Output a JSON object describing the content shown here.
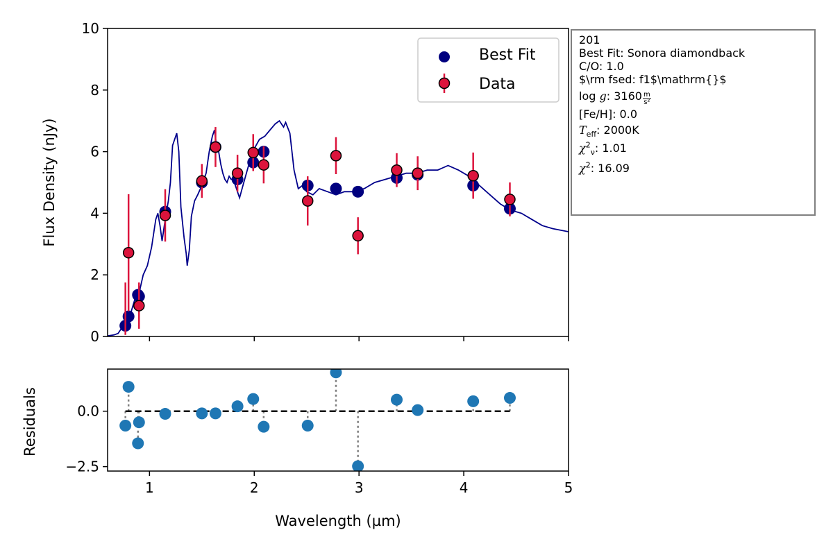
{
  "chart_data": [
    {
      "type": "scatter",
      "panel": "main",
      "ylabel": "Flux Density (nJy)",
      "xlim": [
        0.6,
        5.0
      ],
      "ylim": [
        0,
        10
      ],
      "y_ticks": [
        "0",
        "2",
        "4",
        "6",
        "8",
        "10"
      ],
      "x_ticks_visible_labels": false,
      "legend": {
        "position": "top-right",
        "entries": [
          "Best Fit",
          "Data"
        ]
      },
      "colors": {
        "best_fit": "#00007f",
        "data": "#dc143c",
        "model_line": "#00008b"
      },
      "series": [
        {
          "name": "Best Fit",
          "x": [
            0.77,
            0.8,
            0.89,
            0.9,
            1.15,
            1.5,
            1.63,
            1.84,
            1.99,
            2.09,
            2.51,
            2.78,
            2.99,
            3.36,
            3.56,
            4.09,
            4.44
          ],
          "y": [
            0.35,
            0.65,
            1.35,
            1.3,
            4.05,
            5.0,
            6.15,
            5.1,
            5.65,
            6.0,
            4.9,
            4.8,
            4.7,
            5.15,
            5.25,
            4.9,
            4.15
          ]
        },
        {
          "name": "Data",
          "x": [
            0.8,
            0.9,
            1.15,
            1.5,
            1.63,
            1.84,
            1.99,
            2.09,
            2.51,
            2.78,
            2.99,
            3.36,
            3.56,
            4.09,
            4.44
          ],
          "y": [
            2.72,
            1.0,
            3.93,
            5.05,
            6.15,
            5.3,
            5.97,
            5.57,
            4.4,
            5.87,
            3.27,
            5.4,
            5.3,
            5.22,
            4.45
          ],
          "yerr": [
            1.9,
            0.75,
            0.85,
            0.55,
            0.65,
            0.6,
            0.6,
            0.6,
            0.8,
            0.6,
            0.6,
            0.55,
            0.55,
            0.75,
            0.55
          ]
        },
        {
          "name": "",
          "x": [
            0.77,
            0.77
          ],
          "y": [
            0.05,
            1.75
          ],
          "role": "errorbar-only"
        }
      ],
      "model_spectrum": {
        "x": [
          0.6,
          0.66,
          0.7,
          0.74,
          0.78,
          0.82,
          0.86,
          0.9,
          0.94,
          0.98,
          1.02,
          1.06,
          1.08,
          1.1,
          1.12,
          1.15,
          1.18,
          1.2,
          1.22,
          1.26,
          1.28,
          1.3,
          1.33,
          1.35,
          1.36,
          1.38,
          1.4,
          1.43,
          1.46,
          1.5,
          1.54,
          1.57,
          1.6,
          1.62,
          1.64,
          1.66,
          1.68,
          1.7,
          1.72,
          1.74,
          1.76,
          1.78,
          1.8,
          1.83,
          1.86,
          1.9,
          1.95,
          2.0,
          2.05,
          2.1,
          2.15,
          2.2,
          2.24,
          2.28,
          2.3,
          2.34,
          2.38,
          2.42,
          2.46,
          2.5,
          2.56,
          2.62,
          2.7,
          2.78,
          2.86,
          2.95,
          3.05,
          3.15,
          3.25,
          3.35,
          3.45,
          3.55,
          3.65,
          3.75,
          3.85,
          3.95,
          4.05,
          4.15,
          4.25,
          4.35,
          4.45,
          4.55,
          4.65,
          4.75,
          4.85,
          5.0
        ],
        "y": [
          0.02,
          0.05,
          0.1,
          0.3,
          0.55,
          0.75,
          1.2,
          1.4,
          2.0,
          2.3,
          2.9,
          3.8,
          4.0,
          3.6,
          3.1,
          3.8,
          4.4,
          5.0,
          6.2,
          6.6,
          6.0,
          4.2,
          3.2,
          2.7,
          2.3,
          2.8,
          3.9,
          4.4,
          4.6,
          4.9,
          5.3,
          6.0,
          6.5,
          6.7,
          6.2,
          6.0,
          5.6,
          5.3,
          5.1,
          5.0,
          5.2,
          5.1,
          5.1,
          4.8,
          4.5,
          5.0,
          5.6,
          6.1,
          6.4,
          6.5,
          6.7,
          6.9,
          7.0,
          6.8,
          6.95,
          6.6,
          5.4,
          4.8,
          4.9,
          4.7,
          4.6,
          4.8,
          4.7,
          4.6,
          4.7,
          4.7,
          4.8,
          5.0,
          5.1,
          5.2,
          5.3,
          5.3,
          5.4,
          5.4,
          5.55,
          5.4,
          5.2,
          4.9,
          4.6,
          4.3,
          4.1,
          4.0,
          3.8,
          3.6,
          3.5,
          3.4
        ]
      }
    },
    {
      "type": "scatter",
      "panel": "residuals",
      "xlabel": "Wavelength (µm)",
      "ylabel": "Residuals",
      "xlim": [
        0.6,
        5.0
      ],
      "ylim": [
        -2.7,
        1.9
      ],
      "x_ticks": [
        "1",
        "2",
        "3",
        "4",
        "5"
      ],
      "y_ticks": [
        "0.0",
        "−2.5"
      ],
      "zero_line": {
        "x": [
          0.77,
          4.44
        ],
        "y": 0
      },
      "colors": {
        "points": "#1f77b4",
        "zero_line": "#000000",
        "stems": "#808080"
      },
      "x": [
        0.77,
        0.8,
        0.89,
        0.9,
        1.15,
        1.5,
        1.63,
        1.84,
        1.99,
        2.09,
        2.51,
        2.78,
        2.99,
        3.36,
        3.56,
        4.09,
        4.44
      ],
      "y": [
        -0.65,
        1.1,
        -1.45,
        -0.5,
        -0.12,
        -0.1,
        -0.1,
        0.22,
        0.55,
        -0.7,
        -0.65,
        1.75,
        -2.48,
        0.52,
        0.05,
        0.45,
        0.6
      ]
    }
  ],
  "info_box": {
    "id": "201",
    "best_fit": "Best Fit: Sonora diamondback",
    "co": "C/O: 1.0",
    "fsed": "$\\rm fsed: f1$\\mathrm{}$",
    "logg_prefix": "log",
    "logg_var": "g",
    "logg_value": ": 3160",
    "logg_unit_num": "m",
    "logg_unit_den": "s²",
    "feh": "[Fe/H]: 0.0",
    "teff_var": "T",
    "teff_sub": "eff",
    "teff_value": ": 2000K",
    "chi2nu_var": "χ",
    "chi2nu_sup": "2",
    "chi2nu_sub": "ν",
    "chi2nu_value": ": 1.01",
    "chi2_var": "χ",
    "chi2_sup": "2",
    "chi2_value": ": 16.09"
  }
}
